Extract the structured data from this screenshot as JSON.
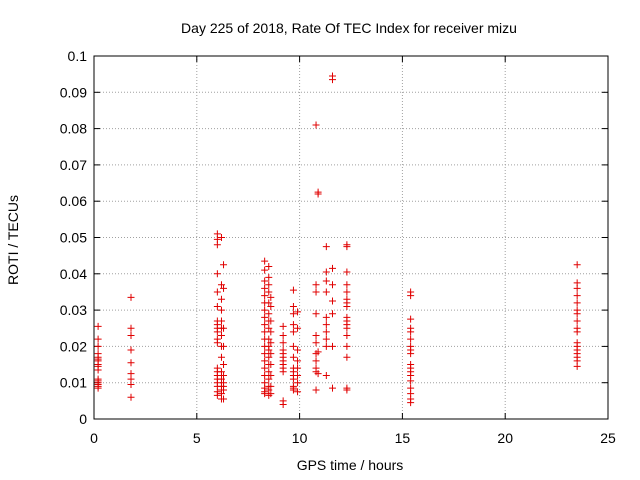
{
  "chart_data": {
    "type": "scatter",
    "title": "Day 225 of 2018, Rate Of TEC Index for receiver mizu",
    "xlabel": "GPS time / hours",
    "ylabel": "ROTI / TECUs",
    "xlim": [
      0,
      25
    ],
    "ylim": [
      0,
      0.1
    ],
    "xticks": [
      "0",
      "5",
      "10",
      "15",
      "20",
      "25"
    ],
    "yticks": [
      "0",
      "0.01",
      "0.02",
      "0.03",
      "0.04",
      "0.05",
      "0.06",
      "0.07",
      "0.08",
      "0.09",
      "0.1"
    ],
    "grid": true,
    "marker": "+",
    "color": "#e00000",
    "series": [
      {
        "x": [
          0.2,
          0.2,
          0.2,
          0.2,
          0.2,
          0.2,
          0.2,
          0.2,
          0.2,
          0.2,
          0.2,
          0.2,
          0.2,
          0.2,
          0.2,
          0.2,
          1.8,
          1.8,
          1.8,
          1.8,
          1.8,
          1.8,
          1.8,
          1.8,
          1.8,
          6.0,
          6.0,
          6.0,
          6.0,
          6.0,
          6.0,
          6.0,
          6.0,
          6.0,
          6.0,
          6.0,
          6.0,
          6.0,
          6.0,
          6.0,
          6.0,
          6.0,
          6.0,
          6.0,
          6.0,
          6.2,
          6.2,
          6.2,
          6.2,
          6.2,
          6.2,
          6.2,
          6.2,
          6.2,
          6.2,
          6.2,
          6.2,
          6.2,
          6.2,
          6.2,
          6.3,
          6.3,
          6.3,
          6.3,
          6.3,
          6.3,
          6.3,
          6.3,
          6.3,
          6.3,
          8.3,
          8.3,
          8.3,
          8.3,
          8.3,
          8.3,
          8.3,
          8.3,
          8.3,
          8.3,
          8.3,
          8.3,
          8.3,
          8.3,
          8.3,
          8.3,
          8.3,
          8.3,
          8.3,
          8.3,
          8.5,
          8.5,
          8.5,
          8.5,
          8.5,
          8.5,
          8.5,
          8.5,
          8.5,
          8.5,
          8.5,
          8.5,
          8.5,
          8.5,
          8.5,
          8.5,
          8.5,
          8.5,
          8.6,
          8.6,
          8.6,
          8.6,
          8.6,
          8.6,
          8.6,
          8.6,
          8.6,
          8.6,
          9.2,
          9.2,
          9.2,
          9.2,
          9.2,
          9.2,
          9.2,
          9.2,
          9.2,
          9.2,
          9.2,
          9.2,
          9.7,
          9.7,
          9.7,
          9.7,
          9.7,
          9.7,
          9.7,
          9.7,
          9.7,
          9.7,
          9.7,
          9.7,
          9.7,
          9.7,
          9.9,
          9.9,
          9.9,
          9.9,
          9.9,
          9.9,
          9.9,
          9.9,
          10.8,
          10.8,
          10.8,
          10.8,
          10.8,
          10.8,
          10.8,
          10.8,
          10.8,
          10.8,
          10.8,
          10.9,
          10.9,
          10.9,
          10.9,
          11.3,
          11.3,
          11.3,
          11.3,
          11.3,
          11.3,
          11.3,
          11.3,
          11.3,
          11.3,
          11.6,
          11.6,
          11.6,
          11.6,
          11.6,
          11.6,
          11.6,
          11.6,
          12.3,
          12.3,
          12.3,
          12.3,
          12.3,
          12.3,
          12.3,
          12.3,
          12.3,
          12.3,
          12.3,
          12.3,
          12.3,
          12.3,
          12.3,
          12.3,
          12.3,
          15.4,
          15.4,
          15.4,
          15.4,
          15.4,
          15.4,
          15.4,
          15.4,
          15.4,
          15.4,
          15.4,
          15.4,
          15.4,
          15.4,
          15.4,
          15.4,
          15.4,
          15.4,
          23.5,
          23.5,
          23.5,
          23.5,
          23.5,
          23.5,
          23.5,
          23.5,
          23.5,
          23.5,
          23.5,
          23.5,
          23.5,
          23.5,
          23.5,
          23.5,
          23.5
        ],
        "y": [
          0.0255,
          0.022,
          0.02,
          0.018,
          0.017,
          0.0165,
          0.016,
          0.015,
          0.0145,
          0.0135,
          0.011,
          0.0105,
          0.01,
          0.0095,
          0.009,
          0.0085,
          0.0335,
          0.025,
          0.023,
          0.019,
          0.0155,
          0.0125,
          0.011,
          0.0095,
          0.006,
          0.051,
          0.0495,
          0.048,
          0.04,
          0.035,
          0.031,
          0.027,
          0.026,
          0.025,
          0.024,
          0.022,
          0.021,
          0.014,
          0.013,
          0.012,
          0.011,
          0.01,
          0.009,
          0.0075,
          0.0065,
          0.05,
          0.037,
          0.033,
          0.03,
          0.027,
          0.025,
          0.023,
          0.02,
          0.017,
          0.013,
          0.011,
          0.009,
          0.008,
          0.007,
          0.0055,
          0.0425,
          0.036,
          0.025,
          0.02,
          0.015,
          0.012,
          0.01,
          0.009,
          0.008,
          0.0055,
          0.0435,
          0.041,
          0.038,
          0.036,
          0.034,
          0.032,
          0.03,
          0.028,
          0.026,
          0.024,
          0.022,
          0.02,
          0.018,
          0.016,
          0.014,
          0.012,
          0.01,
          0.0085,
          0.0075,
          0.007,
          0.042,
          0.039,
          0.037,
          0.035,
          0.032,
          0.029,
          0.027,
          0.025,
          0.022,
          0.02,
          0.019,
          0.017,
          0.015,
          0.013,
          0.011,
          0.009,
          0.008,
          0.0065,
          0.0335,
          0.031,
          0.027,
          0.024,
          0.021,
          0.018,
          0.015,
          0.012,
          0.009,
          0.007,
          0.0255,
          0.023,
          0.021,
          0.019,
          0.018,
          0.017,
          0.016,
          0.015,
          0.014,
          0.013,
          0.005,
          0.004,
          0.0355,
          0.031,
          0.029,
          0.026,
          0.024,
          0.02,
          0.017,
          0.014,
          0.013,
          0.012,
          0.011,
          0.009,
          0.0085,
          0.008,
          0.0295,
          0.025,
          0.019,
          0.016,
          0.014,
          0.012,
          0.01,
          0.0075,
          0.081,
          0.037,
          0.035,
          0.029,
          0.023,
          0.021,
          0.018,
          0.016,
          0.014,
          0.013,
          0.008,
          0.0625,
          0.062,
          0.0185,
          0.0125,
          0.0475,
          0.0405,
          0.038,
          0.035,
          0.028,
          0.026,
          0.024,
          0.022,
          0.02,
          0.012,
          0.0945,
          0.0935,
          0.0415,
          0.037,
          0.0325,
          0.029,
          0.02,
          0.0085,
          0.048,
          0.0475,
          0.0405,
          0.037,
          0.035,
          0.033,
          0.032,
          0.031,
          0.028,
          0.027,
          0.026,
          0.025,
          0.023,
          0.02,
          0.017,
          0.0085,
          0.008,
          0.035,
          0.034,
          0.0275,
          0.025,
          0.024,
          0.022,
          0.02,
          0.019,
          0.018,
          0.015,
          0.014,
          0.013,
          0.012,
          0.0105,
          0.0085,
          0.007,
          0.0055,
          0.0045,
          0.0425,
          0.0375,
          0.036,
          0.034,
          0.032,
          0.03,
          0.029,
          0.027,
          0.025,
          0.024,
          0.021,
          0.02,
          0.019,
          0.018,
          0.017,
          0.016,
          0.0145
        ]
      }
    ]
  }
}
